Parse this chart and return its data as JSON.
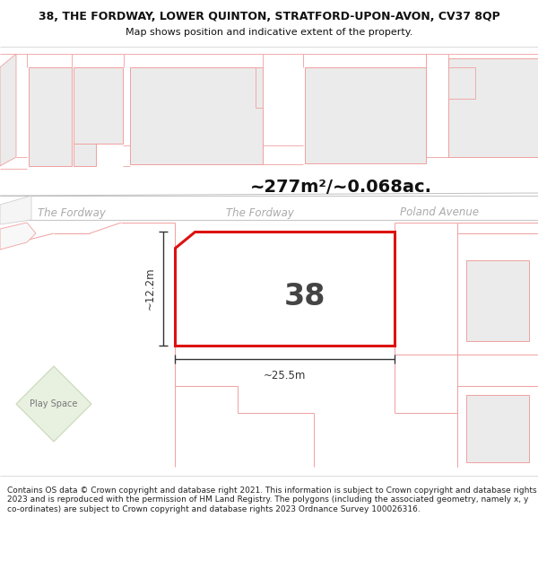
{
  "title_line1": "38, THE FORDWAY, LOWER QUINTON, STRATFORD-UPON-AVON, CV37 8QP",
  "title_line2": "Map shows position and indicative extent of the property.",
  "area_text": "~277m²/~0.068ac.",
  "width_label": "~25.5m",
  "height_label": "~12.2m",
  "number_label": "38",
  "road_label_left": "The Fordway",
  "road_label_mid": "The Fordway",
  "road_label_right": "Poland Avenue",
  "play_space_label": "Play Space",
  "footer_text": "Contains OS data © Crown copyright and database right 2021. This information is subject to Crown copyright and database rights 2023 and is reproduced with the permission of HM Land Registry. The polygons (including the associated geometry, namely x, y co-ordinates) are subject to Crown copyright and database rights 2023 Ordnance Survey 100026316.",
  "bg_color": "#ffffff",
  "building_fill": "#ebebeb",
  "lc": "#f0a0a0",
  "dc": "#dd1111",
  "road_text_color": "#aaaaaa",
  "dim_color": "#333333",
  "title_fs": 9.0,
  "subtitle_fs": 8.0,
  "footer_fs": 6.5,
  "road_label_fs": 8.5,
  "area_fs": 14,
  "number_fs": 24,
  "dim_label_fs": 8.5,
  "play_fs": 7.0
}
